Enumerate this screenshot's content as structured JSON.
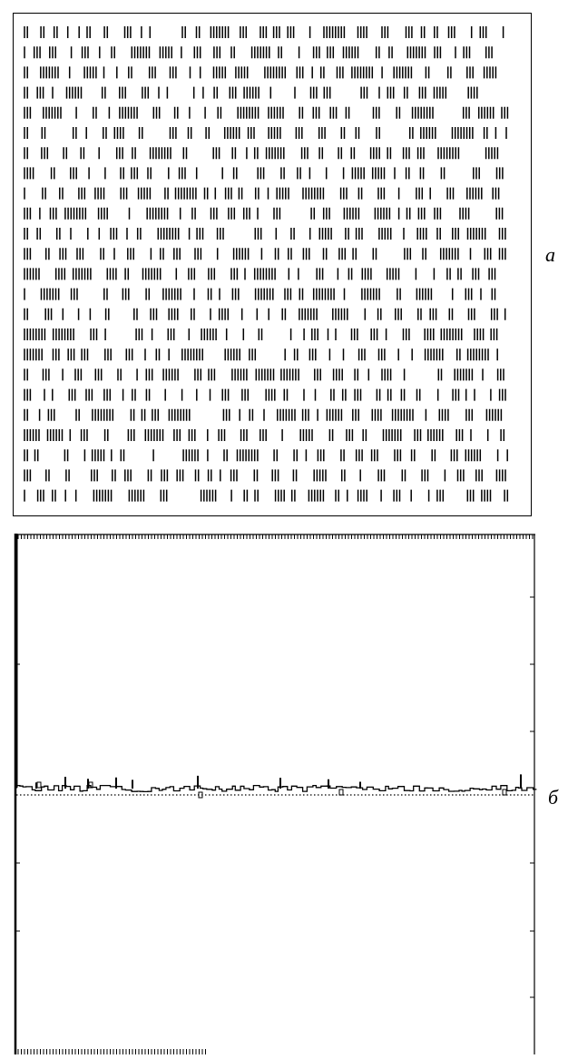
{
  "figure": {
    "panel_a": {
      "label": "a",
      "type": "spike-raster",
      "mark_color": "#000000"
    },
    "panel_b": {
      "label": "б",
      "type": "correlogram",
      "mark_color": "#000000"
    }
  }
}
